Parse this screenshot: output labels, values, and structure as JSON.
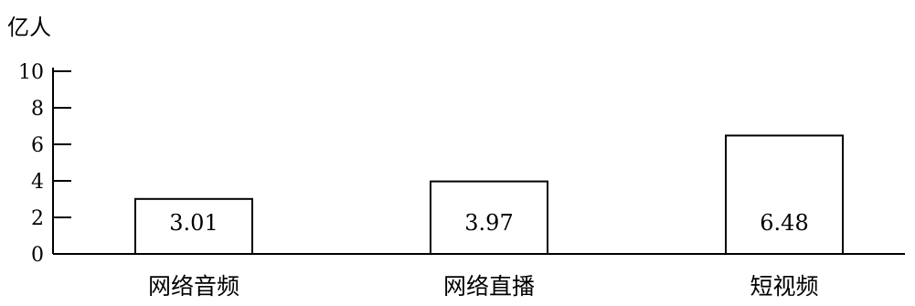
{
  "chart_data": {
    "type": "bar",
    "ylabel": "亿人",
    "ylim": [
      0,
      10
    ],
    "yticks": [
      0,
      2,
      4,
      6,
      8,
      10
    ],
    "categories": [
      "网络音频",
      "网络直播",
      "短视频"
    ],
    "values": [
      3.01,
      3.97,
      6.48
    ],
    "data_labels": [
      "3.01",
      "3.97",
      "6.48"
    ],
    "grid": false,
    "legend": "none",
    "colors": {
      "bar_fill": "#ffffff",
      "bar_stroke": "#000000",
      "axis": "#000000"
    }
  }
}
